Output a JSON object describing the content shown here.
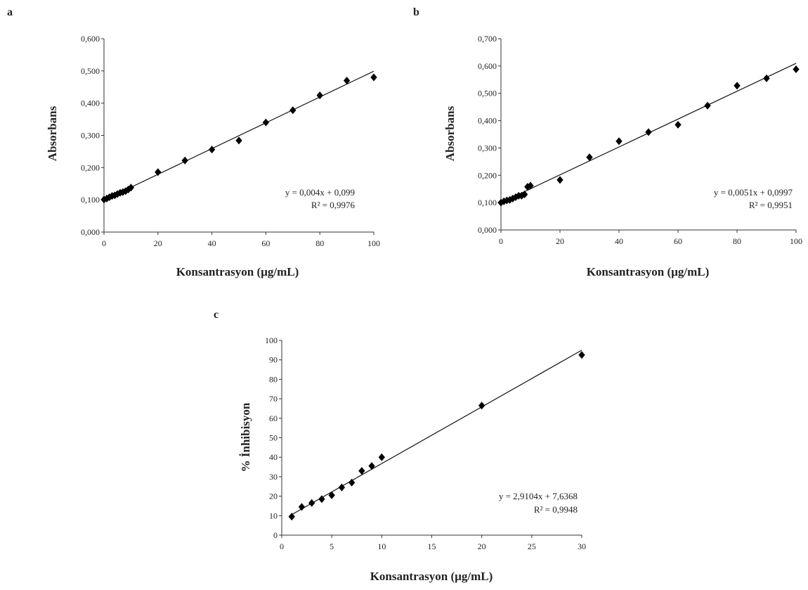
{
  "chart_data": [
    {
      "type": "scatter",
      "panel_label": "a",
      "xlabel": "Konsantrasyon (µg/mL)",
      "ylabel": "Absorbans",
      "xlim": [
        0,
        100
      ],
      "ylim": [
        0,
        0.6
      ],
      "x_ticks": [
        "0",
        "20",
        "40",
        "60",
        "80",
        "100"
      ],
      "y_ticks": [
        "0,000",
        "0,100",
        "0,200",
        "0,300",
        "0,400",
        "0,500",
        "0,600"
      ],
      "x": [
        0,
        1,
        2,
        3,
        4,
        5,
        6,
        7,
        8,
        9,
        10,
        20,
        30,
        40,
        50,
        60,
        70,
        80,
        90,
        100
      ],
      "y": [
        0.101,
        0.104,
        0.108,
        0.112,
        0.114,
        0.118,
        0.122,
        0.124,
        0.127,
        0.132,
        0.138,
        0.186,
        0.222,
        0.256,
        0.284,
        0.34,
        0.378,
        0.424,
        0.47,
        0.48
      ],
      "trendline": {
        "slope": 0.004,
        "intercept": 0.099
      },
      "equation": "y = 0,004x + 0,099",
      "r2": "R² = 0,9976",
      "grid": false
    },
    {
      "type": "scatter",
      "panel_label": "b",
      "xlabel": "Konsantrasyon (µg/mL)",
      "ylabel": "Absorbans",
      "xlim": [
        0,
        100
      ],
      "ylim": [
        0,
        0.7
      ],
      "x_ticks": [
        "0",
        "20",
        "40",
        "60",
        "80",
        "100"
      ],
      "y_ticks": [
        "0,000",
        "0,100",
        "0,200",
        "0,300",
        "0,400",
        "0,500",
        "0,600",
        "0,700"
      ],
      "x": [
        0,
        1,
        2,
        3,
        4,
        5,
        6,
        7,
        8,
        9,
        10,
        20,
        30,
        40,
        50,
        60,
        70,
        80,
        90,
        100
      ],
      "y": [
        0.1,
        0.105,
        0.108,
        0.11,
        0.115,
        0.12,
        0.125,
        0.125,
        0.13,
        0.158,
        0.162,
        0.183,
        0.266,
        0.325,
        0.358,
        0.385,
        0.455,
        0.528,
        0.555,
        0.588
      ],
      "trendline": {
        "slope": 0.0051,
        "intercept": 0.0997
      },
      "equation": "y = 0,0051x + 0,0997",
      "r2": "R² = 0,9951",
      "grid": false
    },
    {
      "type": "scatter",
      "panel_label": "c",
      "xlabel": "Konsantrasyon (µg/mL)",
      "ylabel": "% İnhibisyon",
      "xlim": [
        0,
        30
      ],
      "ylim": [
        0,
        100
      ],
      "x_ticks": [
        "0",
        "5",
        "10",
        "15",
        "20",
        "25",
        "30"
      ],
      "y_ticks": [
        "0",
        "10",
        "20",
        "30",
        "40",
        "50",
        "60",
        "70",
        "80",
        "90",
        "100"
      ],
      "x": [
        1,
        2,
        3,
        4,
        5,
        6,
        7,
        8,
        9,
        10,
        20,
        30
      ],
      "y": [
        9.5,
        14.5,
        16.5,
        18.5,
        20.5,
        24.5,
        27.0,
        33.0,
        35.5,
        40.0,
        66.5,
        92.5
      ],
      "trendline": {
        "slope": 2.9104,
        "intercept": 7.6368
      },
      "equation": "y = 2,9104x + 7,6368",
      "r2": "R² = 0,9948",
      "grid": false
    }
  ]
}
